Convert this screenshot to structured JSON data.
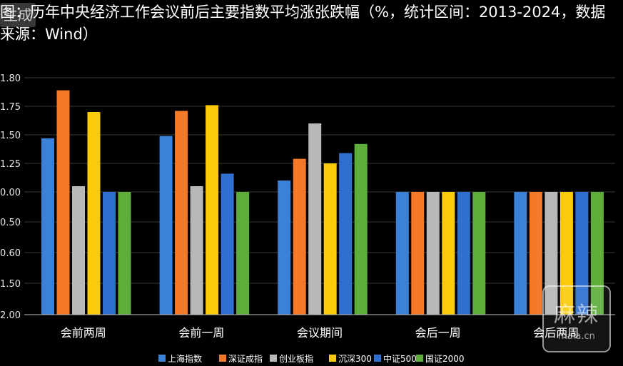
{
  "title": "图：历年中央经济工作会议前后主要指数平均涨张跌幅（%，统计区间：2013-2024，数据来源：Wind）",
  "watermarks": {
    "corner": "生成",
    "logo_cn": "麻辣",
    "logo_en": "mala.cn"
  },
  "chart_data": {
    "type": "bar",
    "title": "图：历年中央经济工作会议前后主要指数平均涨张跌幅（%，统计区间：2013-2024，数据来源：Wind）",
    "xlabel": "",
    "ylabel": "",
    "categories": [
      "会前两周",
      "会前一周",
      "会议期间",
      "会后一周",
      "会后两周"
    ],
    "y_ticks": [
      "1.80",
      "1.75",
      "1.50",
      "1.25",
      "0.00",
      "-0.50",
      "-0.60",
      "-1.50",
      "-2.00"
    ],
    "grid": true,
    "legend_position": "bottom",
    "series": [
      {
        "name": "上海指数",
        "color": "#3b82d6",
        "values": [
          1.47,
          1.49,
          1.1,
          1.0,
          1.0
        ]
      },
      {
        "name": "深证成指",
        "color": "#f47a2a",
        "values": [
          1.89,
          1.71,
          1.29,
          1.0,
          1.0
        ]
      },
      {
        "name": "创业板指",
        "color": "#b8b8b8",
        "values": [
          1.05,
          1.05,
          1.6,
          1.0,
          1.0
        ]
      },
      {
        "name": "沉深300",
        "color": "#fbcb0a",
        "values": [
          1.7,
          1.76,
          1.25,
          1.0,
          1.0
        ]
      },
      {
        "name": "中证500",
        "color": "#2f6fcf",
        "values": [
          1.0,
          1.16,
          1.34,
          1.0,
          1.0
        ]
      },
      {
        "name": "国证2000",
        "color": "#5fae3c",
        "values": [
          1.0,
          1.0,
          1.42,
          1.0,
          1.0
        ]
      }
    ]
  }
}
